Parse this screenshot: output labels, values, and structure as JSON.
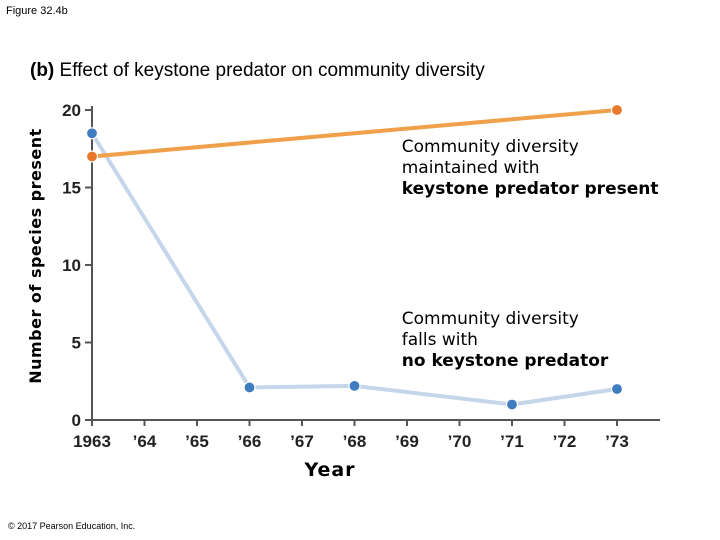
{
  "figure_label": "Figure 32.4b",
  "title_prefix": "(b)",
  "title_text": "Effect of keystone predator on community diversity",
  "copyright": "© 2017 Pearson Education, Inc.",
  "chart_data": {
    "type": "line",
    "title": "(b) Effect of keystone predator on community diversity",
    "xlabel": "Year",
    "ylabel": "Number of species present",
    "xlim": [
      1963,
      1973
    ],
    "ylim": [
      0,
      20
    ],
    "x_tick_labels": [
      "1963",
      "’64",
      "’65",
      "’66",
      "’67",
      "’68",
      "’69",
      "’70",
      "’71",
      "’72",
      "’73"
    ],
    "y_ticks": [
      0,
      5,
      10,
      15,
      20
    ],
    "grid": false,
    "series": [
      {
        "name": "keystone predator present",
        "color": "#f0a04b",
        "marker_color": "#e8782a",
        "x": [
          1963,
          1973
        ],
        "y": [
          17,
          20
        ]
      },
      {
        "name": "no keystone predator",
        "color": "#c5d5ea",
        "marker_color": "#3f7cc0",
        "x": [
          1963,
          1966,
          1968,
          1971,
          1973
        ],
        "y": [
          18.5,
          2.1,
          2.2,
          1,
          2
        ]
      }
    ],
    "annotations": [
      {
        "lines": [
          "Community diversity",
          "maintained with"
        ],
        "bold_line": "keystone predator present",
        "anchor_x": 1968.9,
        "anchor_y": 17.3
      },
      {
        "lines": [
          "Community diversity",
          "falls with"
        ],
        "bold_line": "no keystone predator",
        "anchor_x": 1968.9,
        "anchor_y": 6.2
      }
    ]
  }
}
